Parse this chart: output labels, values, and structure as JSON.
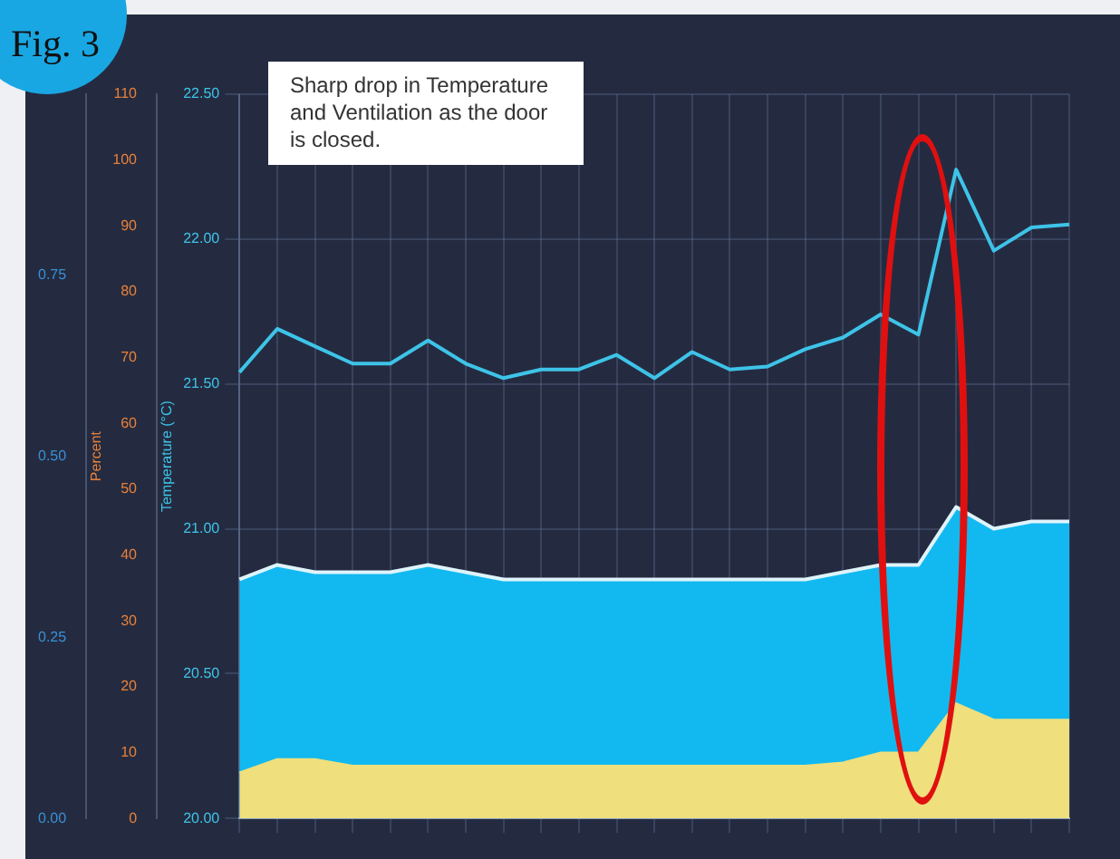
{
  "chart_data": {
    "type": "line",
    "annotations": [
      "Fig. 3",
      "Sharp drop in Temperature and Ventilation as the door is closed."
    ],
    "categories": [
      null,
      null,
      null,
      null,
      null,
      null,
      null,
      null,
      null,
      null,
      null,
      null,
      null,
      null,
      null,
      null,
      null,
      null,
      null,
      null,
      null,
      null,
      null
    ],
    "ylabel": "Temperature (°C)",
    "y3label": "Percent",
    "ylim": [
      20,
      22.5
    ],
    "yticks": [
      {
        "value": 20,
        "label": "20.00"
      },
      {
        "value": 20.5,
        "label": "20.50"
      },
      {
        "value": 21,
        "label": "21.00"
      },
      {
        "value": 21.5,
        "label": "21.50"
      },
      {
        "value": 22,
        "label": "22.00"
      },
      {
        "value": 22.5,
        "label": "22.50"
      }
    ],
    "y3lim": [
      0,
      110
    ],
    "y3ticks": [
      0,
      10,
      20,
      30,
      40,
      50,
      60,
      70,
      80,
      90,
      100,
      110
    ],
    "y2lim": [
      0,
      1
    ],
    "y2ticks": [
      {
        "value": 0,
        "label": "0.00"
      },
      {
        "value": 0.25,
        "label": "0.25"
      },
      {
        "value": 0.5,
        "label": "0.50"
      },
      {
        "value": 0.75,
        "label": "0.75"
      }
    ],
    "grid": true,
    "series": [
      {
        "type": "line",
        "color": "#3ec3e8",
        "values": [
          21.54,
          21.69,
          21.63,
          21.57,
          21.57,
          21.65,
          21.57,
          21.52,
          21.55,
          21.55,
          21.6,
          21.52,
          21.61,
          21.55,
          21.56,
          21.62,
          21.66,
          21.74,
          21.67,
          22.24,
          21.96,
          22.04,
          22.05
        ]
      },
      {
        "type": "area",
        "axis": "y2",
        "color": "#12b9f0",
        "values": [
          0.33,
          0.35,
          0.34,
          0.34,
          0.34,
          0.35,
          0.34,
          0.33,
          0.33,
          0.33,
          0.33,
          0.33,
          0.33,
          0.33,
          0.33,
          0.33,
          0.34,
          0.35,
          0.35,
          0.43,
          0.4,
          0.41,
          0.41
        ]
      },
      {
        "type": "area",
        "axis": "y3",
        "color": "#efdf7d",
        "values": [
          7,
          9,
          9,
          8,
          8,
          8,
          8,
          8,
          8,
          8,
          8,
          8,
          8,
          8,
          8,
          8,
          8.5,
          10,
          10,
          17.5,
          15,
          15,
          15
        ]
      }
    ]
  }
}
